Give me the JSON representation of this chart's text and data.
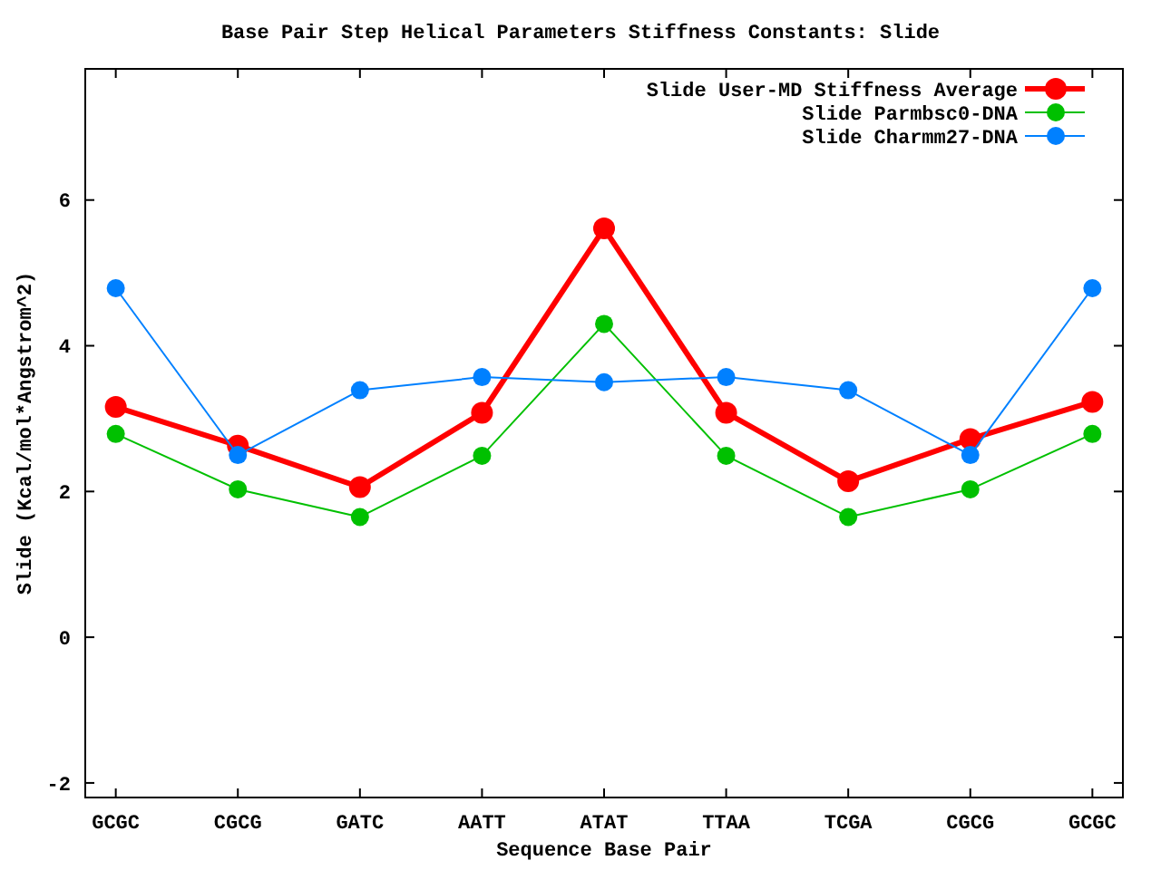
{
  "chart_data": {
    "type": "line",
    "title": "Base Pair Step Helical Parameters Stiffness Constants: Slide",
    "xlabel": "Sequence Base Pair",
    "ylabel": "Slide (Kcal/mol*Angstrom^2)",
    "categories": [
      "GCGC",
      "CGCG",
      "GATC",
      "AATT",
      "ATAT",
      "TTAA",
      "TCGA",
      "CGCG",
      "GCGC"
    ],
    "series": [
      {
        "name": "Slide User-MD Stiffness Average",
        "color": "#ff0000",
        "values": [
          3.16,
          2.63,
          2.06,
          3.08,
          5.61,
          3.08,
          2.14,
          2.72,
          3.23
        ]
      },
      {
        "name": "Slide Parmbsc0-DNA",
        "color": "#00c000",
        "values": [
          2.79,
          2.03,
          1.65,
          2.49,
          4.3,
          2.49,
          1.65,
          2.03,
          2.79
        ]
      },
      {
        "name": "Slide Charmm27-DNA",
        "color": "#0080ff",
        "values": [
          4.79,
          2.5,
          3.39,
          3.57,
          3.5,
          3.57,
          3.39,
          2.5,
          4.79
        ]
      }
    ],
    "ylim": [
      -2.2,
      7.8
    ],
    "yticks": [
      -2,
      0,
      2,
      4,
      6
    ],
    "grid": false,
    "legend": "top right",
    "marker": "circle",
    "line_style": "solid"
  }
}
